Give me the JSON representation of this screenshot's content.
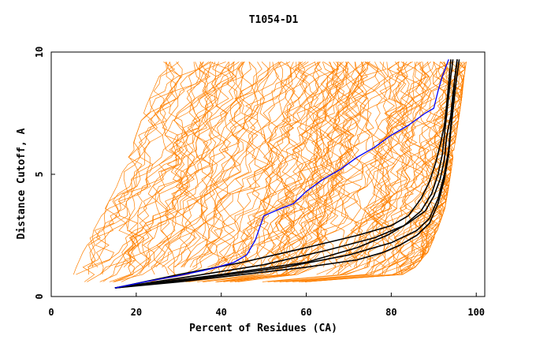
{
  "chart_data": {
    "type": "line",
    "title": "T1054-D1",
    "xlabel": "Percent of Residues (CA)",
    "ylabel": "Distance Cutoff, A",
    "xlim": [
      0,
      102
    ],
    "ylim": [
      0,
      10
    ],
    "xticks": [
      "0",
      "20",
      "40",
      "60",
      "80",
      "100"
    ],
    "yticks": [
      "0",
      "5",
      "10"
    ],
    "grid": false,
    "colors": {
      "background": "#ffffff",
      "frame": "#000000",
      "others": "#ff8000",
      "highlight": "#0000ff",
      "reference": "#000000"
    },
    "series": [
      {
        "role": "highlight",
        "color": "#0000ff",
        "x": [
          15,
          22,
          30,
          38,
          43,
          46,
          48,
          50,
          54,
          57,
          60,
          64,
          68,
          72,
          76,
          80,
          84,
          88,
          90,
          91,
          92,
          93.5
        ],
        "y": [
          0.35,
          0.6,
          0.85,
          1.15,
          1.4,
          1.7,
          2.3,
          3.3,
          3.6,
          3.8,
          4.3,
          4.8,
          5.2,
          5.7,
          6.1,
          6.6,
          7.0,
          7.5,
          7.7,
          8.4,
          9.0,
          9.7
        ]
      },
      {
        "role": "reference",
        "color": "#000000",
        "x": [
          15,
          30,
          45,
          60,
          72,
          80,
          84,
          87,
          89,
          90.5,
          91.5,
          92.5,
          93,
          93.5,
          94
        ],
        "y": [
          0.35,
          0.9,
          1.4,
          2.0,
          2.5,
          2.9,
          3.3,
          4.0,
          4.7,
          5.5,
          6.2,
          7.0,
          7.8,
          8.7,
          9.7
        ]
      },
      {
        "role": "reference",
        "color": "#000000",
        "x": [
          15,
          32,
          50,
          65,
          76,
          83,
          87,
          89.5,
          91,
          92,
          92.5,
          93,
          93.5,
          94,
          94.5
        ],
        "y": [
          0.35,
          0.8,
          1.3,
          1.9,
          2.4,
          2.9,
          3.5,
          4.2,
          5.0,
          5.8,
          6.6,
          7.4,
          8.2,
          9.0,
          9.7
        ]
      },
      {
        "role": "reference",
        "color": "#000000",
        "x": [
          15,
          35,
          55,
          70,
          80,
          86,
          89,
          91,
          92.5,
          93.5,
          94,
          94.5,
          95,
          95.5
        ],
        "y": [
          0.35,
          0.75,
          1.2,
          1.7,
          2.2,
          2.7,
          3.2,
          4.0,
          5.0,
          6.0,
          7.0,
          8.0,
          9.0,
          9.7
        ]
      },
      {
        "role": "reference",
        "color": "#000000",
        "x": [
          15,
          40,
          60,
          72,
          79,
          84,
          88,
          90,
          91.5,
          92.5,
          93,
          94,
          94.5,
          95,
          95.5
        ],
        "y": [
          0.35,
          0.9,
          1.4,
          2.0,
          2.5,
          3.0,
          3.5,
          4.1,
          4.8,
          5.6,
          6.5,
          7.4,
          8.3,
          9.0,
          9.7
        ]
      },
      {
        "role": "reference",
        "color": "#000000",
        "x": [
          15,
          30,
          45,
          60,
          72,
          78,
          82,
          86,
          89,
          91,
          92.5,
          93.5,
          94,
          94.5,
          95,
          95.5,
          96
        ],
        "y": [
          0.35,
          0.6,
          0.9,
          1.2,
          1.5,
          1.8,
          2.1,
          2.5,
          3.0,
          3.8,
          4.8,
          5.8,
          6.8,
          7.6,
          8.4,
          9.1,
          9.7
        ]
      }
    ],
    "band_upper": [
      [
        4,
        0.3
      ],
      [
        5,
        1.0
      ],
      [
        8,
        2.2
      ],
      [
        12,
        3.5
      ],
      [
        15,
        4.5
      ],
      [
        18,
        5.8
      ],
      [
        20,
        6.8
      ],
      [
        22,
        7.8
      ],
      [
        24,
        8.6
      ],
      [
        25,
        9.0
      ],
      [
        26,
        9.6
      ]
    ],
    "band_lower": [
      [
        4,
        0.3
      ],
      [
        20,
        0.35
      ],
      [
        40,
        0.5
      ],
      [
        60,
        0.6
      ],
      [
        75,
        0.7
      ],
      [
        82,
        0.8
      ],
      [
        86,
        1.2
      ],
      [
        89,
        1.8
      ],
      [
        91,
        2.6
      ],
      [
        93,
        3.6
      ],
      [
        94,
        4.6
      ],
      [
        95,
        5.8
      ],
      [
        96,
        7.0
      ],
      [
        97,
        8.2
      ],
      [
        97.5,
        9.0
      ],
      [
        98,
        9.6
      ]
    ]
  }
}
